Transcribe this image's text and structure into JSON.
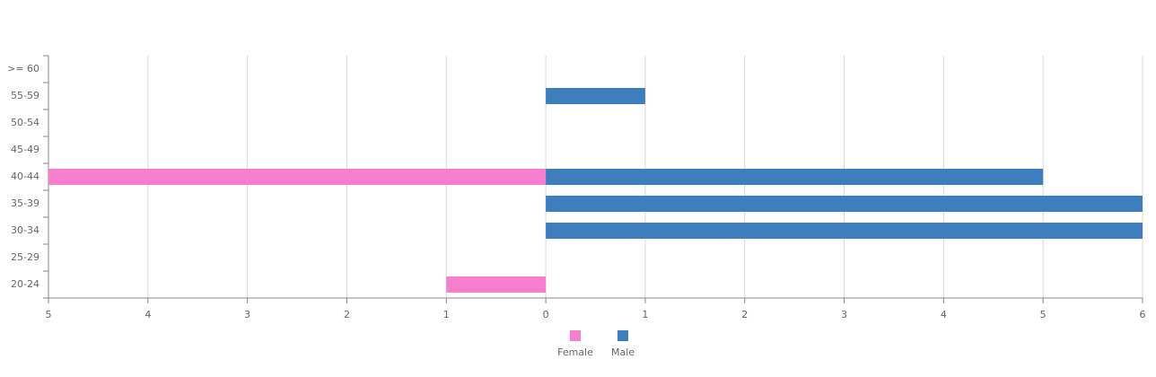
{
  "chart_data": {
    "type": "bar",
    "orientation": "horizontal",
    "categories": [
      "20-24",
      "25-29",
      "30-34",
      "35-39",
      "40-44",
      "45-49",
      "50-54",
      "55-59",
      ">= 60"
    ],
    "series": [
      {
        "name": "Female",
        "color": "#f77fcd",
        "values": [
          -1,
          0,
          0,
          0,
          -5,
          0,
          0,
          0,
          0
        ]
      },
      {
        "name": "Male",
        "color": "#3d7ebf",
        "values": [
          0,
          0,
          6,
          6,
          5,
          0,
          0,
          1,
          0
        ]
      }
    ],
    "xlim": [
      -5,
      6
    ],
    "xticks": [
      {
        "value": -5,
        "label": "5"
      },
      {
        "value": -4,
        "label": "4"
      },
      {
        "value": -3,
        "label": "3"
      },
      {
        "value": -2,
        "label": "2"
      },
      {
        "value": -1,
        "label": "1"
      },
      0,
      1,
      2,
      3,
      4,
      5,
      6
    ],
    "grid": true,
    "legend": "bottom"
  }
}
